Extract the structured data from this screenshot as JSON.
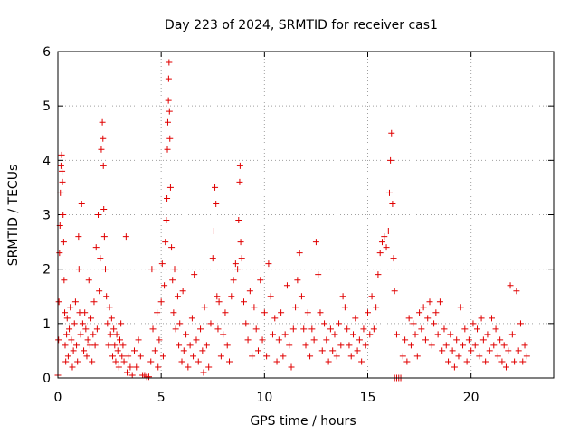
{
  "chart_data": {
    "type": "scatter",
    "title": "Day 223 of 2024, SRMTID for receiver cas1",
    "xlabel": "GPS time / hours",
    "ylabel": "SRMTID / TECUs",
    "xlim": [
      0,
      24
    ],
    "ylim": [
      0,
      6
    ],
    "xticks": [
      0,
      5,
      10,
      15,
      20
    ],
    "yticks": [
      0,
      1,
      2,
      3,
      4,
      5,
      6
    ],
    "xtick_labels": [
      "0",
      "5",
      "10",
      "15",
      "20"
    ],
    "ytick_labels": [
      "0",
      "1",
      "2",
      "3",
      "4",
      "5",
      "6"
    ],
    "grid": true,
    "marker": "+",
    "color": "#e00000",
    "series": [
      {
        "name": "SRMTID",
        "points": [
          [
            0.0,
            0.05
          ],
          [
            0.03,
            0.7
          ],
          [
            0.05,
            1.4
          ],
          [
            0.08,
            2.3
          ],
          [
            0.1,
            2.8
          ],
          [
            0.12,
            3.4
          ],
          [
            0.15,
            3.9
          ],
          [
            0.18,
            4.1
          ],
          [
            0.2,
            3.8
          ],
          [
            0.22,
            3.6
          ],
          [
            0.25,
            3.0
          ],
          [
            0.28,
            2.5
          ],
          [
            0.3,
            1.8
          ],
          [
            0.33,
            1.2
          ],
          [
            0.35,
            0.6
          ],
          [
            0.38,
            0.3
          ],
          [
            0.42,
            0.8
          ],
          [
            0.45,
            1.1
          ],
          [
            0.5,
            0.4
          ],
          [
            0.55,
            0.9
          ],
          [
            0.6,
            1.3
          ],
          [
            0.65,
            0.7
          ],
          [
            0.7,
            0.2
          ],
          [
            0.75,
            0.5
          ],
          [
            0.8,
            1.0
          ],
          [
            0.85,
            1.4
          ],
          [
            0.9,
            0.6
          ],
          [
            0.95,
            0.3
          ],
          [
            1.0,
            2.6
          ],
          [
            1.02,
            2.0
          ],
          [
            1.05,
            1.2
          ],
          [
            1.1,
            0.8
          ],
          [
            1.15,
            3.2
          ],
          [
            1.2,
            1.0
          ],
          [
            1.25,
            0.5
          ],
          [
            1.3,
            1.2
          ],
          [
            1.35,
            0.9
          ],
          [
            1.4,
            0.4
          ],
          [
            1.45,
            0.7
          ],
          [
            1.5,
            1.8
          ],
          [
            1.55,
            0.6
          ],
          [
            1.6,
            1.1
          ],
          [
            1.65,
            0.3
          ],
          [
            1.7,
            0.8
          ],
          [
            1.75,
            1.4
          ],
          [
            1.8,
            0.6
          ],
          [
            1.85,
            2.4
          ],
          [
            1.9,
            0.9
          ],
          [
            1.95,
            3.0
          ],
          [
            2.0,
            1.6
          ],
          [
            2.05,
            2.2
          ],
          [
            2.1,
            4.2
          ],
          [
            2.15,
            4.7
          ],
          [
            2.18,
            4.4
          ],
          [
            2.2,
            3.9
          ],
          [
            2.22,
            3.1
          ],
          [
            2.25,
            2.6
          ],
          [
            2.3,
            2.0
          ],
          [
            2.35,
            1.5
          ],
          [
            2.4,
            1.0
          ],
          [
            2.45,
            0.6
          ],
          [
            2.5,
            1.3
          ],
          [
            2.55,
            0.8
          ],
          [
            2.6,
            1.1
          ],
          [
            2.65,
            0.4
          ],
          [
            2.7,
            0.9
          ],
          [
            2.75,
            0.6
          ],
          [
            2.8,
            0.3
          ],
          [
            2.85,
            0.8
          ],
          [
            2.9,
            0.5
          ],
          [
            2.95,
            0.2
          ],
          [
            3.0,
            0.7
          ],
          [
            3.05,
            1.0
          ],
          [
            3.1,
            0.4
          ],
          [
            3.15,
            0.6
          ],
          [
            3.2,
            0.3
          ],
          [
            3.3,
            2.6
          ],
          [
            3.35,
            0.1
          ],
          [
            3.4,
            0.4
          ],
          [
            3.5,
            0.2
          ],
          [
            3.6,
            0.05
          ],
          [
            3.7,
            0.5
          ],
          [
            3.8,
            0.2
          ],
          [
            3.9,
            0.7
          ],
          [
            4.0,
            0.4
          ],
          [
            4.1,
            0.05
          ],
          [
            4.2,
            0.05
          ],
          [
            4.3,
            0.02
          ],
          [
            4.4,
            0.02
          ],
          [
            4.5,
            0.3
          ],
          [
            4.55,
            2.0
          ],
          [
            4.6,
            0.9
          ],
          [
            4.7,
            0.5
          ],
          [
            4.8,
            1.2
          ],
          [
            4.85,
            0.2
          ],
          [
            4.9,
            0.7
          ],
          [
            5.0,
            1.4
          ],
          [
            5.05,
            2.1
          ],
          [
            5.1,
            0.4
          ],
          [
            5.15,
            1.7
          ],
          [
            5.2,
            2.5
          ],
          [
            5.25,
            2.9
          ],
          [
            5.28,
            3.3
          ],
          [
            5.3,
            4.2
          ],
          [
            5.32,
            4.7
          ],
          [
            5.35,
            5.1
          ],
          [
            5.36,
            5.5
          ],
          [
            5.38,
            5.8
          ],
          [
            5.4,
            4.9
          ],
          [
            5.42,
            4.4
          ],
          [
            5.45,
            3.5
          ],
          [
            5.5,
            2.4
          ],
          [
            5.55,
            1.8
          ],
          [
            5.6,
            1.2
          ],
          [
            5.65,
            2.0
          ],
          [
            5.7,
            0.9
          ],
          [
            5.8,
            1.5
          ],
          [
            5.85,
            0.6
          ],
          [
            5.9,
            1.0
          ],
          [
            6.0,
            0.3
          ],
          [
            6.05,
            1.6
          ],
          [
            6.1,
            0.5
          ],
          [
            6.2,
            0.8
          ],
          [
            6.3,
            0.2
          ],
          [
            6.4,
            0.6
          ],
          [
            6.5,
            1.1
          ],
          [
            6.55,
            0.4
          ],
          [
            6.6,
            1.9
          ],
          [
            6.7,
            0.7
          ],
          [
            6.8,
            0.3
          ],
          [
            6.9,
            0.9
          ],
          [
            7.0,
            0.5
          ],
          [
            7.05,
            0.1
          ],
          [
            7.1,
            1.3
          ],
          [
            7.2,
            0.6
          ],
          [
            7.3,
            0.2
          ],
          [
            7.4,
            1.0
          ],
          [
            7.5,
            2.2
          ],
          [
            7.55,
            2.7
          ],
          [
            7.6,
            3.5
          ],
          [
            7.65,
            3.2
          ],
          [
            7.7,
            1.5
          ],
          [
            7.75,
            0.9
          ],
          [
            7.8,
            1.4
          ],
          [
            7.9,
            0.4
          ],
          [
            8.0,
            0.8
          ],
          [
            8.1,
            1.2
          ],
          [
            8.2,
            0.6
          ],
          [
            8.3,
            0.3
          ],
          [
            8.4,
            1.5
          ],
          [
            8.5,
            1.8
          ],
          [
            8.6,
            2.1
          ],
          [
            8.7,
            2.0
          ],
          [
            8.75,
            2.9
          ],
          [
            8.8,
            3.6
          ],
          [
            8.82,
            3.9
          ],
          [
            8.85,
            2.5
          ],
          [
            8.9,
            2.2
          ],
          [
            9.0,
            1.4
          ],
          [
            9.1,
            1.0
          ],
          [
            9.2,
            0.7
          ],
          [
            9.3,
            1.6
          ],
          [
            9.4,
            0.4
          ],
          [
            9.5,
            1.3
          ],
          [
            9.6,
            0.9
          ],
          [
            9.7,
            0.5
          ],
          [
            9.8,
            1.8
          ],
          [
            9.9,
            0.7
          ],
          [
            10.0,
            1.2
          ],
          [
            10.1,
            0.4
          ],
          [
            10.2,
            2.1
          ],
          [
            10.3,
            1.5
          ],
          [
            10.4,
            0.8
          ],
          [
            10.5,
            1.1
          ],
          [
            10.6,
            0.3
          ],
          [
            10.7,
            0.7
          ],
          [
            10.8,
            1.2
          ],
          [
            10.9,
            0.4
          ],
          [
            11.0,
            0.8
          ],
          [
            11.1,
            1.7
          ],
          [
            11.2,
            0.6
          ],
          [
            11.3,
            0.2
          ],
          [
            11.4,
            0.9
          ],
          [
            11.5,
            1.3
          ],
          [
            11.6,
            1.8
          ],
          [
            11.7,
            2.3
          ],
          [
            11.8,
            1.5
          ],
          [
            11.9,
            0.9
          ],
          [
            12.0,
            0.6
          ],
          [
            12.1,
            1.2
          ],
          [
            12.2,
            0.4
          ],
          [
            12.3,
            0.9
          ],
          [
            12.4,
            0.7
          ],
          [
            12.5,
            2.5
          ],
          [
            12.6,
            1.9
          ],
          [
            12.7,
            1.2
          ],
          [
            12.8,
            0.5
          ],
          [
            12.9,
            1.0
          ],
          [
            13.0,
            0.7
          ],
          [
            13.1,
            0.3
          ],
          [
            13.2,
            0.9
          ],
          [
            13.3,
            0.5
          ],
          [
            13.4,
            0.8
          ],
          [
            13.5,
            0.4
          ],
          [
            13.6,
            1.0
          ],
          [
            13.7,
            0.6
          ],
          [
            13.8,
            1.5
          ],
          [
            13.9,
            1.3
          ],
          [
            14.0,
            0.9
          ],
          [
            14.1,
            0.6
          ],
          [
            14.2,
            0.4
          ],
          [
            14.3,
            0.8
          ],
          [
            14.4,
            1.1
          ],
          [
            14.5,
            0.5
          ],
          [
            14.6,
            0.7
          ],
          [
            14.7,
            0.3
          ],
          [
            14.8,
            0.9
          ],
          [
            14.9,
            0.6
          ],
          [
            15.0,
            1.2
          ],
          [
            15.1,
            0.8
          ],
          [
            15.2,
            1.5
          ],
          [
            15.3,
            0.9
          ],
          [
            15.4,
            1.3
          ],
          [
            15.5,
            1.9
          ],
          [
            15.6,
            2.3
          ],
          [
            15.7,
            2.5
          ],
          [
            15.8,
            2.6
          ],
          [
            15.9,
            2.4
          ],
          [
            16.0,
            2.7
          ],
          [
            16.05,
            3.4
          ],
          [
            16.1,
            4.0
          ],
          [
            16.15,
            4.5
          ],
          [
            16.2,
            3.2
          ],
          [
            16.25,
            2.2
          ],
          [
            16.3,
            1.6
          ],
          [
            16.4,
            0.8
          ],
          [
            16.3,
            0.0
          ],
          [
            16.4,
            0.0
          ],
          [
            16.5,
            0.0
          ],
          [
            16.6,
            0.0
          ],
          [
            16.7,
            0.4
          ],
          [
            16.8,
            0.7
          ],
          [
            16.9,
            0.3
          ],
          [
            17.0,
            1.1
          ],
          [
            17.1,
            0.6
          ],
          [
            17.2,
            1.0
          ],
          [
            17.3,
            0.8
          ],
          [
            17.4,
            0.4
          ],
          [
            17.5,
            1.2
          ],
          [
            17.6,
            0.9
          ],
          [
            17.7,
            1.3
          ],
          [
            17.8,
            0.7
          ],
          [
            17.9,
            1.1
          ],
          [
            18.0,
            1.4
          ],
          [
            18.1,
            0.6
          ],
          [
            18.2,
            1.0
          ],
          [
            18.3,
            1.2
          ],
          [
            18.4,
            0.8
          ],
          [
            18.5,
            1.4
          ],
          [
            18.6,
            0.5
          ],
          [
            18.7,
            0.9
          ],
          [
            18.8,
            0.6
          ],
          [
            18.9,
            0.3
          ],
          [
            19.0,
            0.8
          ],
          [
            19.1,
            0.5
          ],
          [
            19.2,
            0.2
          ],
          [
            19.3,
            0.7
          ],
          [
            19.4,
            0.4
          ],
          [
            19.5,
            1.3
          ],
          [
            19.6,
            0.6
          ],
          [
            19.7,
            0.9
          ],
          [
            19.8,
            0.3
          ],
          [
            19.9,
            0.7
          ],
          [
            20.0,
            0.5
          ],
          [
            20.1,
            1.0
          ],
          [
            20.2,
            0.6
          ],
          [
            20.3,
            0.9
          ],
          [
            20.4,
            0.4
          ],
          [
            20.5,
            1.1
          ],
          [
            20.6,
            0.7
          ],
          [
            20.7,
            0.3
          ],
          [
            20.8,
            0.8
          ],
          [
            20.9,
            0.5
          ],
          [
            21.0,
            1.1
          ],
          [
            21.1,
            0.6
          ],
          [
            21.2,
            0.9
          ],
          [
            21.3,
            0.4
          ],
          [
            21.4,
            0.7
          ],
          [
            21.5,
            0.3
          ],
          [
            21.6,
            0.6
          ],
          [
            21.7,
            0.2
          ],
          [
            21.8,
            0.5
          ],
          [
            21.9,
            1.7
          ],
          [
            22.0,
            0.8
          ],
          [
            22.1,
            0.3
          ],
          [
            22.2,
            1.6
          ],
          [
            22.3,
            0.5
          ],
          [
            22.4,
            1.0
          ],
          [
            22.5,
            0.3
          ],
          [
            22.6,
            0.6
          ],
          [
            22.7,
            0.4
          ]
        ]
      }
    ]
  }
}
